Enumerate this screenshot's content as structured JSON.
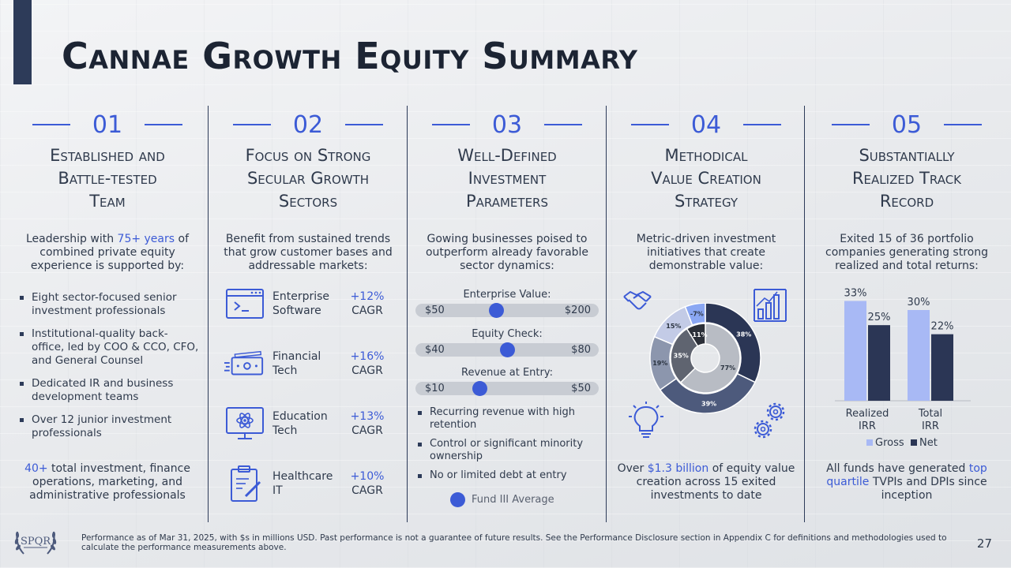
{
  "title": "Cannae Growth Equity Summary",
  "colors": {
    "accent": "#3c5bd6",
    "navy": "#2d3b59",
    "light_bar": "#a8b9f5",
    "dark_bar": "#2b3655"
  },
  "columns": [
    {
      "number": "01",
      "title_lines": [
        "Established and",
        "Battle-tested",
        "Team"
      ]
    },
    {
      "number": "02",
      "title_lines": [
        "Focus on Strong",
        "Secular Growth",
        "Sectors"
      ]
    },
    {
      "number": "03",
      "title_lines": [
        "Well-Defined",
        "Investment",
        "Parameters"
      ]
    },
    {
      "number": "04",
      "title_lines": [
        "Methodical",
        "Value Creation",
        "Strategy"
      ]
    },
    {
      "number": "05",
      "title_lines": [
        "Substantially",
        "Realized Track",
        "Record"
      ]
    }
  ],
  "col1": {
    "intro_pre": "Leadership with ",
    "intro_highlight": "75+ years",
    "intro_post": " of combined private equity experience is supported by:",
    "bullets": [
      "Eight sector-focused senior investment professionals",
      "Institutional-quality back-office, led by COO & CCO, CFO, and General Counsel",
      "Dedicated IR and business development teams",
      "Over 12 junior investment professionals"
    ],
    "closing_highlight": "40+",
    "closing_post": " total investment, finance operations, marketing, and administrative professionals"
  },
  "col2": {
    "intro": "Benefit from sustained trends that grow customer bases and addressable markets:",
    "sectors": [
      {
        "icon": "software-window-icon",
        "name": "Enterprise Software",
        "growth": "+12%",
        "unit": "CAGR"
      },
      {
        "icon": "cash-icon",
        "name": "Financial Tech",
        "growth": "+16%",
        "unit": "CAGR"
      },
      {
        "icon": "atom-monitor-icon",
        "name": "Education Tech",
        "growth": "+13%",
        "unit": "CAGR"
      },
      {
        "icon": "clipboard-icon",
        "name": "Healthcare IT",
        "growth": "+10%",
        "unit": "CAGR"
      }
    ]
  },
  "col3": {
    "intro": "Gowing businesses poised to outperform already favorable sector dynamics:",
    "sliders": [
      {
        "label": "Enterprise Value:",
        "min": "$50",
        "max": "$200",
        "position": 0.44
      },
      {
        "label": "Equity Check:",
        "min": "$40",
        "max": "$80",
        "position": 0.5
      },
      {
        "label": "Revenue at Entry:",
        "min": "$10",
        "max": "$50",
        "position": 0.35
      }
    ],
    "bullets": [
      "Recurring revenue with high retention",
      "Control or significant minority ownership",
      "No or limited debt at entry"
    ],
    "legend": "Fund III Average"
  },
  "col4": {
    "intro": "Metric-driven investment initiatives that create demonstrable value:",
    "donut_outer": [
      {
        "label": "38%",
        "value": 38,
        "color": "#2b3655"
      },
      {
        "label": "39%",
        "value": 39,
        "color": "#4d5a7c"
      },
      {
        "label": "19%",
        "value": 19,
        "color": "#8c96ad"
      },
      {
        "label": "15%",
        "value": 15,
        "color": "#c3cbe6"
      },
      {
        "label": "-7%",
        "value": 7,
        "color": "#8aa7f3"
      }
    ],
    "donut_inner": [
      {
        "label": "77%",
        "value": 77,
        "color": "#b8bcc4"
      },
      {
        "label": "35%",
        "value": 35,
        "color": "#5f6470"
      },
      {
        "label": "-11%",
        "value": 11,
        "color": "#2b2f38"
      }
    ],
    "closing_pre": "Over ",
    "closing_highlight": "$1.3 billion",
    "closing_post": " of equity value creation across 15 exited investments to date"
  },
  "col5": {
    "intro": "Exited 15 of 36 portfolio companies generating strong realized and total returns:",
    "chart_data": {
      "type": "bar",
      "categories": [
        "Realized IRR",
        "Total IRR"
      ],
      "series": [
        {
          "name": "Gross",
          "values": [
            33,
            30
          ],
          "labels": [
            "33%",
            "30%"
          ],
          "color": "#a8b9f5"
        },
        {
          "name": "Net",
          "values": [
            25,
            22
          ],
          "labels": [
            "25%",
            "22%"
          ],
          "color": "#2b3655"
        }
      ],
      "ylim": [
        0,
        36
      ]
    },
    "closing_pre": "All funds have generated ",
    "closing_highlight": "top quartile",
    "closing_post": " TVPIs and DPIs since inception"
  },
  "footer": "Performance as of Mar 31, 2025, with $s in millions USD. Past performance is not a guarantee of future results. See the Performance Disclosure section in Appendix C for definitions and methodologies used to calculate the performance measurements above.",
  "page_number": "27",
  "logo_text": "SPQR"
}
